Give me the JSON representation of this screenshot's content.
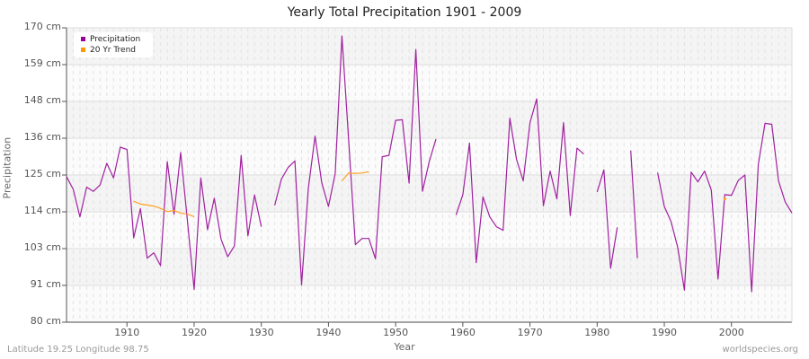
{
  "title": "Yearly Total Precipitation 1901 - 2009",
  "footer": {
    "location": "Latitude 19.25 Longitude 98.75",
    "source": "worldspecies.org"
  },
  "colors": {
    "precipitation": "#a020a0",
    "trend": "#ffa020",
    "band_light": "#f4f4f4",
    "band_white": "#fbfbfb"
  },
  "legend": {
    "items": [
      {
        "label": "Precipitation",
        "color": "#990099"
      },
      {
        "label": "20 Yr Trend",
        "color": "#ff9900"
      }
    ]
  },
  "chart_data": {
    "type": "line",
    "title": "Yearly Total Precipitation 1901 - 2009",
    "xlabel": "Year",
    "ylabel": "Precipitation",
    "ylim": [
      80,
      170
    ],
    "xlim": [
      1901,
      2009
    ],
    "y_ticks": [
      "80 cm",
      "91 cm",
      "103 cm",
      "114 cm",
      "125 cm",
      "136 cm",
      "148 cm",
      "159 cm",
      "170 cm"
    ],
    "y_tick_values": [
      80,
      91.25,
      102.5,
      113.75,
      125,
      136.25,
      147.5,
      158.75,
      170
    ],
    "x_ticks": [
      1910,
      1920,
      1930,
      1940,
      1950,
      1960,
      1970,
      1980,
      1990,
      2000
    ],
    "grid": true,
    "legend_position": "top-left",
    "series": [
      {
        "name": "Precipitation",
        "x": [
          1901,
          1902,
          1903,
          1904,
          1905,
          1906,
          1907,
          1908,
          1909,
          1910,
          1911,
          1912,
          1913,
          1914,
          1915,
          1916,
          1917,
          1918,
          1919,
          1920,
          1921,
          1922,
          1923,
          1924,
          1925,
          1926,
          1927,
          1928,
          1929,
          1930,
          1931,
          1932,
          1933,
          1934,
          1935,
          1936,
          1937,
          1938,
          1939,
          1940,
          1941,
          1942,
          1943,
          1944,
          1945,
          1946,
          1947,
          1948,
          1949,
          1950,
          1951,
          1952,
          1953,
          1954,
          1955,
          1956,
          1957,
          1958,
          1959,
          1960,
          1961,
          1962,
          1963,
          1964,
          1965,
          1966,
          1967,
          1968,
          1969,
          1970,
          1971,
          1972,
          1973,
          1974,
          1975,
          1976,
          1977,
          1978,
          1979,
          1980,
          1981,
          1982,
          1983,
          1984,
          1985,
          1986,
          1987,
          1988,
          1989,
          1990,
          1991,
          1992,
          1993,
          1994,
          1995,
          1996,
          1997,
          1998,
          1999,
          2000,
          2001,
          2002,
          2003,
          2004,
          2005,
          2006,
          2007,
          2008,
          2009
        ],
        "values": [
          124.5,
          120.6,
          112.2,
          121.3,
          120.0,
          122.0,
          128.6,
          124.1,
          133.5,
          132.8,
          105.8,
          114.7,
          99.6,
          101.2,
          97.3,
          129.1,
          113.0,
          131.9,
          111.0,
          90.0,
          124.1,
          108.3,
          117.9,
          105.4,
          100.0,
          103.3,
          131.0,
          106.4,
          118.9,
          109.2,
          null,
          115.7,
          123.8,
          127.3,
          129.3,
          91.4,
          120.9,
          136.9,
          122.7,
          115.4,
          125.4,
          167.5,
          136.0,
          103.7,
          105.6,
          105.6,
          99.4,
          130.6,
          131.0,
          141.7,
          141.9,
          122.5,
          163.4,
          120.0,
          129.1,
          136.0,
          null,
          null,
          112.8,
          119.0,
          134.8,
          98.2,
          118.3,
          112.2,
          109.2,
          108.1,
          142.4,
          129.8,
          123.2,
          141.0,
          148.3,
          115.6,
          126.2,
          117.7,
          141.0,
          112.6,
          133.2,
          131.4,
          null,
          119.8,
          126.6,
          96.5,
          109.0,
          null,
          132.5,
          99.6,
          null,
          null,
          125.7,
          115.4,
          110.8,
          102.8,
          89.8,
          125.9,
          122.9,
          126.2,
          120.4,
          93.2,
          119.0,
          118.8,
          123.3,
          125.0,
          89.3,
          128.2,
          140.8,
          140.5,
          123.2,
          116.8,
          113.4
        ]
      },
      {
        "name": "20 Yr Trend",
        "x": [
          1911,
          1912,
          1913,
          1914,
          1915,
          1916,
          1917,
          1918,
          1919,
          1920,
          1942,
          1943,
          1944,
          1945,
          1946,
          1999
        ],
        "values": [
          117.0,
          116.1,
          115.8,
          115.5,
          114.8,
          113.8,
          114.2,
          113.3,
          113.1,
          112.2,
          123.2,
          125.6,
          125.5,
          125.6,
          126.0,
          117.7
        ],
        "segments": [
          [
            1911,
            1920
          ],
          [
            1942,
            1946
          ],
          [
            1999,
            1999
          ]
        ]
      }
    ]
  }
}
